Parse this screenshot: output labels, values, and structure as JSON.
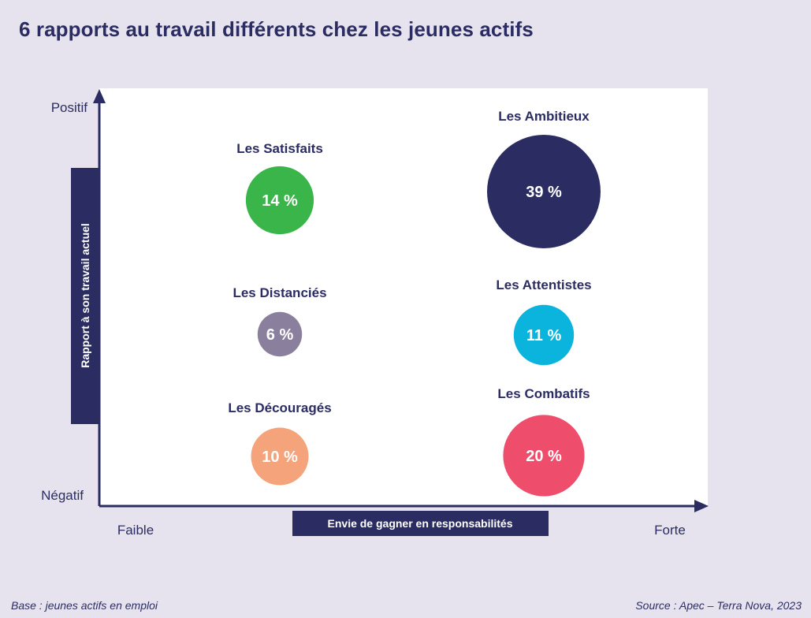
{
  "title": "6 rapports au travail différents chez les jeunes actifs",
  "footer": {
    "base": "Base : jeunes actifs en emploi",
    "source": "Source : Apec – Terra Nova, 2023"
  },
  "colors": {
    "background": "#e6e3ee",
    "plot": "#ffffff",
    "navy": "#2b2d62"
  },
  "chart_data": {
    "type": "scatter",
    "title": "6 rapports au travail différents chez les jeunes actifs",
    "xlabel": "Envie de gagner en responsabilités",
    "ylabel": "Rapport à son travail actuel",
    "x_tick_labels": [
      "Faible",
      "Forte"
    ],
    "y_tick_labels": [
      "Négatif",
      "Positif"
    ],
    "points": [
      {
        "name": "Les Satisfaits",
        "x": "Faible",
        "y": "Positif",
        "value": 14,
        "label": "14 %",
        "color": "#3ab54a"
      },
      {
        "name": "Les Ambitieux",
        "x": "Forte",
        "y": "Positif",
        "value": 39,
        "label": "39 %",
        "color": "#2b2d62"
      },
      {
        "name": "Les Distanciés",
        "x": "Faible",
        "y": "Neutre",
        "value": 6,
        "label": "6 %",
        "color": "#8a7f9c"
      },
      {
        "name": "Les Attentistes",
        "x": "Forte",
        "y": "Neutre",
        "value": 11,
        "label": "11 %",
        "color": "#0ab4dc"
      },
      {
        "name": "Les Découragés",
        "x": "Faible",
        "y": "Négatif",
        "value": 10,
        "label": "10 %",
        "color": "#f4a37b"
      },
      {
        "name": "Les Combatifs",
        "x": "Forte",
        "y": "Négatif",
        "value": 20,
        "label": "20 %",
        "color": "#ee4d6c"
      }
    ]
  }
}
